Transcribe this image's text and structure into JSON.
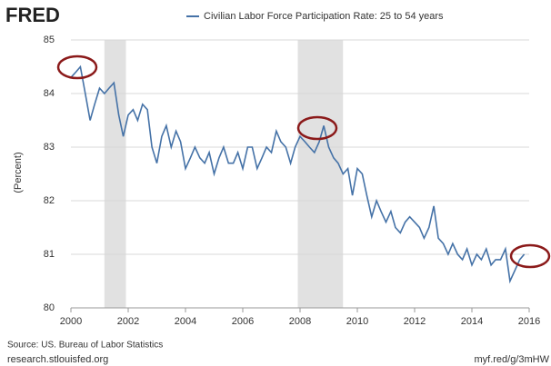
{
  "chart_data": {
    "type": "line",
    "logo": "FRED",
    "y_label": "(Percent)",
    "source": "Source: US. Bureau of Labor Statistics",
    "site": "research.stlouisfed.org",
    "short_url": "myf.red/g/3mHW",
    "xlim": [
      2000,
      2016
    ],
    "xticks": [
      2000,
      2002,
      2004,
      2006,
      2008,
      2010,
      2012,
      2014,
      2016
    ],
    "ylim": [
      80,
      85
    ],
    "yticks": [
      80,
      81,
      82,
      83,
      84,
      85
    ],
    "grid": true,
    "recessions": [
      [
        2001.17,
        2001.92
      ],
      [
        2007.92,
        2009.5
      ]
    ],
    "recession_color": "#e1e1e1",
    "x": [
      2000,
      2000.17,
      2000.33,
      2000.5,
      2000.67,
      2000.83,
      2001,
      2001.17,
      2001.33,
      2001.5,
      2001.67,
      2001.83,
      2002,
      2002.17,
      2002.33,
      2002.5,
      2002.67,
      2002.83,
      2003,
      2003.17,
      2003.33,
      2003.5,
      2003.67,
      2003.83,
      2004,
      2004.17,
      2004.33,
      2004.5,
      2004.67,
      2004.83,
      2005,
      2005.17,
      2005.33,
      2005.5,
      2005.67,
      2005.83,
      2006,
      2006.17,
      2006.33,
      2006.5,
      2006.67,
      2006.83,
      2007,
      2007.17,
      2007.33,
      2007.5,
      2007.67,
      2007.83,
      2008,
      2008.17,
      2008.33,
      2008.5,
      2008.67,
      2008.83,
      2009,
      2009.17,
      2009.33,
      2009.5,
      2009.67,
      2009.83,
      2010,
      2010.17,
      2010.33,
      2010.5,
      2010.67,
      2010.83,
      2011,
      2011.17,
      2011.33,
      2011.5,
      2011.67,
      2011.83,
      2012,
      2012.17,
      2012.33,
      2012.5,
      2012.67,
      2012.83,
      2013,
      2013.17,
      2013.33,
      2013.5,
      2013.67,
      2013.83,
      2014,
      2014.17,
      2014.33,
      2014.5,
      2014.67,
      2014.83,
      2015,
      2015.17,
      2015.33,
      2015.5,
      2015.67,
      2015.83
    ],
    "series": [
      {
        "name": "Civilian Labor Force Participation Rate: 25 to 54 years",
        "color": "#4572a7",
        "values": [
          84.3,
          84.4,
          84.5,
          84.0,
          83.5,
          83.8,
          84.1,
          84.0,
          84.1,
          84.2,
          83.6,
          83.2,
          83.6,
          83.7,
          83.5,
          83.8,
          83.7,
          83.0,
          82.7,
          83.2,
          83.4,
          83.0,
          83.3,
          83.1,
          82.6,
          82.8,
          83.0,
          82.8,
          82.7,
          82.9,
          82.5,
          82.8,
          83.0,
          82.7,
          82.7,
          82.9,
          82.6,
          83.0,
          83.0,
          82.6,
          82.8,
          83.0,
          82.9,
          83.3,
          83.1,
          83.0,
          82.7,
          83.0,
          83.2,
          83.1,
          83.0,
          82.9,
          83.1,
          83.4,
          83.0,
          82.8,
          82.7,
          82.5,
          82.6,
          82.1,
          82.6,
          82.5,
          82.1,
          81.7,
          82.0,
          81.8,
          81.6,
          81.8,
          81.5,
          81.4,
          81.6,
          81.7,
          81.6,
          81.5,
          81.3,
          81.5,
          81.9,
          81.3,
          81.2,
          81.0,
          81.2,
          81.0,
          80.9,
          81.1,
          80.8,
          81.0,
          80.9,
          81.1,
          80.8,
          80.9,
          80.9,
          81.1,
          80.5,
          80.7,
          80.9,
          81.0
        ]
      }
    ]
  }
}
